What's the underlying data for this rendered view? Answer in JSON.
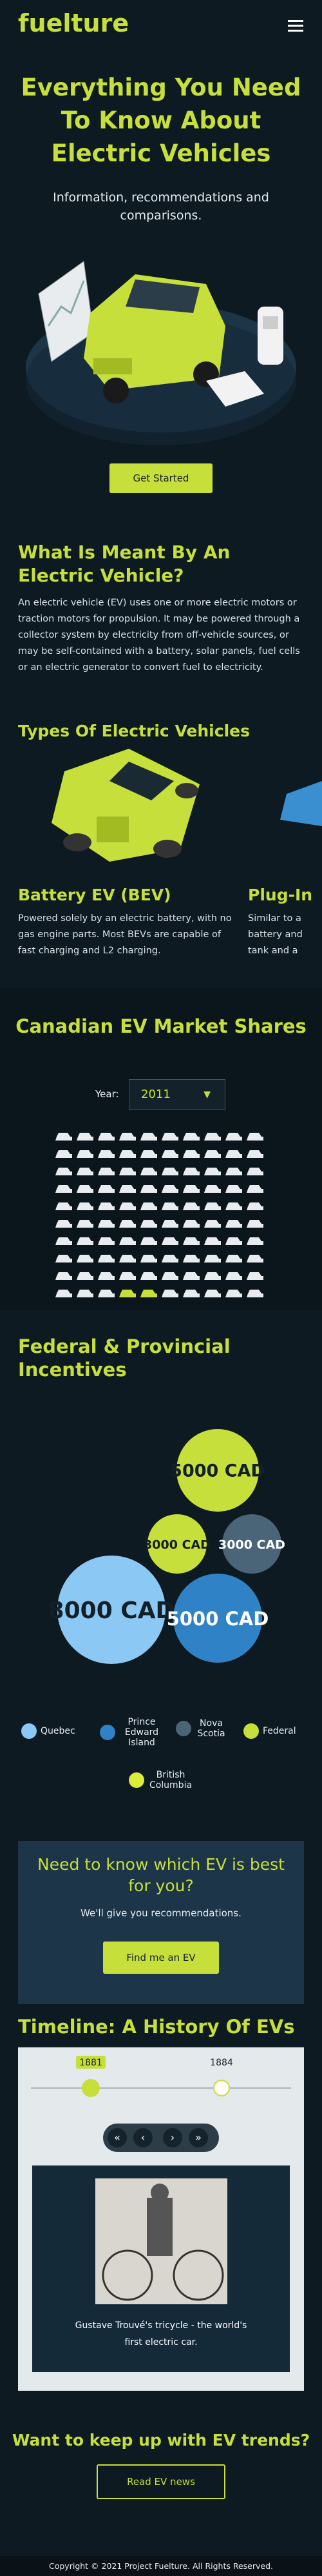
{
  "header": {
    "logo": "fuelture"
  },
  "hero": {
    "title": "Everything You Need To Know About Electric Vehicles",
    "subtitle": "Information, recommendations and comparisons.",
    "button": "Get Started"
  },
  "about": {
    "title": "What Is Meant By An Electric Vehicle?",
    "text": "An electric vehicle (EV) uses one or more electric motors or traction motors for propulsion. It may be powered through a collector system by electricity from off-vehicle sources, or may be self-contained with a battery, solar panels, fuel cells or an electric generator to convert fuel to electricity."
  },
  "types": {
    "title": "Types Of Electric Vehicles",
    "cards": [
      {
        "name": "Battery EV (BEV)",
        "text": "Powered solely by an electric battery, with no gas engine parts. Most BEVs are capable of fast charging and L2 charging."
      },
      {
        "name": "Plug-In",
        "lines": [
          "Similar to a",
          "battery and",
          "tank and a"
        ]
      }
    ]
  },
  "market": {
    "title": "Canadian EV Market Shares",
    "year_label": "Year:",
    "year": "2011"
  },
  "incentives": {
    "title": "Federal & Provincial Incentives",
    "bubbles": [
      "5000 CAD",
      "3000 CAD",
      "3000 CAD",
      "8000 CAD",
      "5000 CAD"
    ],
    "legend": [
      "Quebec",
      "Prince Edward Island",
      "Nova Scotia",
      "Federal",
      "British Columbia"
    ]
  },
  "cta": {
    "title": "Need to know which EV is best for you?",
    "text": "We'll give you recommendations.",
    "button": "Find me an EV"
  },
  "timeline": {
    "title": "Timeline: A History Of EVs",
    "years": [
      "1881",
      "1884"
    ],
    "caption": "Gustave Trouvé's tricycle - the world's first electric car."
  },
  "news": {
    "title": "Want to keep up with EV trends?",
    "button": "Read EV news"
  },
  "footer": {
    "text": "Copyright © 2021 Project Fuelture. All Rights Reserved."
  }
}
